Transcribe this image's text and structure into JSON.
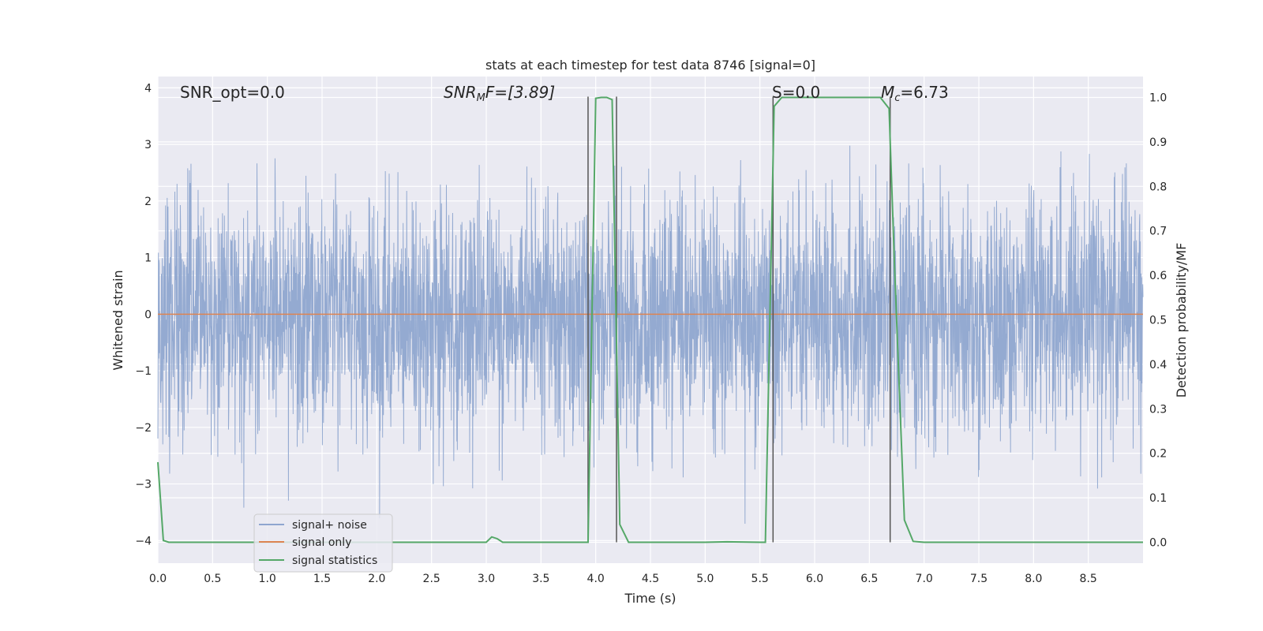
{
  "chart_data": {
    "type": "line",
    "title": "stats at each timestep for test data 8746 [signal=0]",
    "xlabel": "Time (s)",
    "ylabel": "Whitened strain",
    "y2label": "Detection probability/MF",
    "xlim": [
      0,
      9.0
    ],
    "ylim": [
      -4.4,
      4.2
    ],
    "y2lim": [
      -0.047,
      1.047
    ],
    "xticks": [
      "0.0",
      "0.5",
      "1.0",
      "1.5",
      "2.0",
      "2.5",
      "3.0",
      "3.5",
      "4.0",
      "4.5",
      "5.0",
      "5.5",
      "6.0",
      "6.5",
      "7.0",
      "7.5",
      "8.0",
      "8.5"
    ],
    "yticks": [
      "−4",
      "−3",
      "−2",
      "−1",
      "0",
      "1",
      "2",
      "3",
      "4"
    ],
    "y2ticks": [
      "0.0",
      "0.1",
      "0.2",
      "0.3",
      "0.4",
      "0.5",
      "0.6",
      "0.7",
      "0.8",
      "0.9",
      "1.0"
    ],
    "grid": true,
    "legend_position": "lower-left",
    "annotations": [
      "SNR_opt=0.0",
      "SNR",
      "M",
      "F=[3.89]",
      "S=0.0",
      "M",
      "c",
      "=6.73"
    ],
    "colors": {
      "noise": "#8fa6cf",
      "signal": "#dd8452",
      "stats": "#55a868",
      "vline": "#555555",
      "background": "#eaeaf2"
    },
    "series": [
      {
        "name": "signal+ noise",
        "description_range": [
          -3.9,
          3.8
        ],
        "axis": "left"
      },
      {
        "name": "signal only",
        "constant": 0,
        "axis": "left"
      },
      {
        "name": "signal statistics",
        "axis": "right",
        "points": [
          [
            0.0,
            0.18
          ],
          [
            0.05,
            0.004
          ],
          [
            0.1,
            0.0
          ],
          [
            0.5,
            0.0
          ],
          [
            1.0,
            0.0
          ],
          [
            1.5,
            0.0
          ],
          [
            2.0,
            0.0
          ],
          [
            2.5,
            0.0
          ],
          [
            3.0,
            0.0
          ],
          [
            3.05,
            0.012
          ],
          [
            3.1,
            0.008
          ],
          [
            3.15,
            0.0
          ],
          [
            3.2,
            0.0
          ],
          [
            3.5,
            0.0
          ],
          [
            3.93,
            0.0
          ],
          [
            4.0,
            0.998
          ],
          [
            4.05,
            1.0
          ],
          [
            4.1,
            1.0
          ],
          [
            4.15,
            0.995
          ],
          [
            4.22,
            0.04
          ],
          [
            4.3,
            0.0
          ],
          [
            4.5,
            0.0
          ],
          [
            5.0,
            0.0
          ],
          [
            5.2,
            0.001
          ],
          [
            5.5,
            0.0
          ],
          [
            5.55,
            0.0
          ],
          [
            5.63,
            0.98
          ],
          [
            5.7,
            1.0
          ],
          [
            6.0,
            1.0
          ],
          [
            6.5,
            1.0
          ],
          [
            6.6,
            1.0
          ],
          [
            6.68,
            0.975
          ],
          [
            6.73,
            0.62
          ],
          [
            6.82,
            0.05
          ],
          [
            6.9,
            0.002
          ],
          [
            7.0,
            0.0
          ],
          [
            8.0,
            0.0
          ],
          [
            9.0,
            0.0
          ]
        ]
      }
    ],
    "vlines": [
      {
        "x": 3.93,
        "y_range": [
          0.0,
          1.0
        ]
      },
      {
        "x": 4.19,
        "y_range": [
          0.0,
          1.0
        ]
      },
      {
        "x": 5.62,
        "y_range": [
          0.0,
          1.0
        ]
      },
      {
        "x": 6.69,
        "y_range": [
          0.0,
          1.0
        ]
      }
    ]
  }
}
